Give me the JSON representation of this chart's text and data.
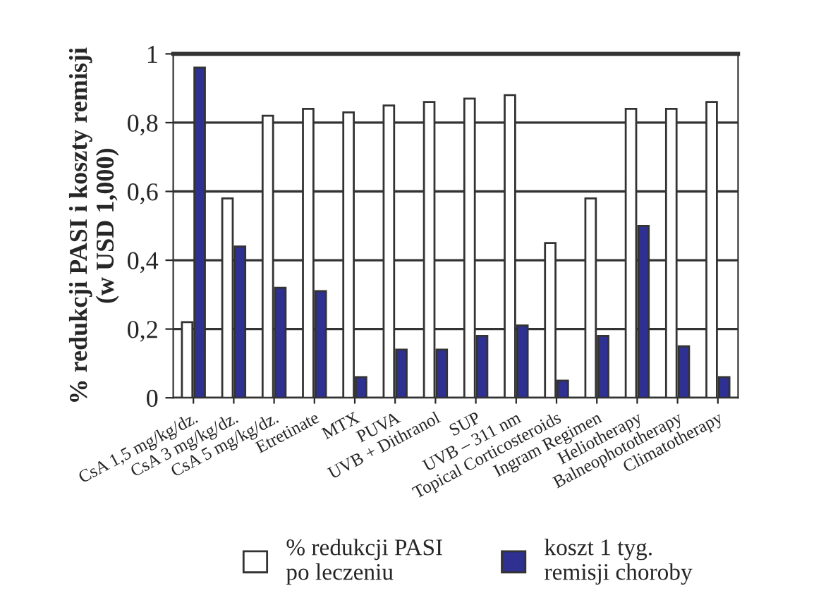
{
  "chart_data": {
    "type": "bar",
    "ylabel": "% redukcji PASI i koszty remisji\n(w USD 1,000)",
    "categories": [
      "CsA 1,5 mg/kg/dz.",
      "CsA 3 mg/kg/dz.",
      "CsA 5 mg/kg/dz.",
      "Etretinate",
      "MTX",
      "PUVA",
      "UVB + Dithranol",
      "SUP",
      "UVB – 311 nm",
      "Topical Corticosteroids",
      "Ingram Regimen",
      "Heliotherapy",
      "Balneophototherapy",
      "Climatotherapy"
    ],
    "series": [
      {
        "name": "% redukcji PASI\npo leczeniu",
        "color": "#ffffff",
        "values": [
          0.22,
          0.58,
          0.82,
          0.84,
          0.83,
          0.85,
          0.86,
          0.87,
          0.88,
          0.45,
          0.58,
          0.84,
          0.84,
          0.86
        ]
      },
      {
        "name": "koszt 1 tyg.\nremisji choroby",
        "color": "#2e3192",
        "values": [
          0.96,
          0.44,
          0.32,
          0.31,
          0.06,
          0.14,
          0.14,
          0.18,
          0.21,
          0.05,
          0.18,
          0.5,
          0.15,
          0.06
        ]
      }
    ],
    "ylim": [
      0,
      1
    ],
    "yticks": [
      0,
      {
        "value": 0.2,
        "label": "0,2"
      },
      {
        "value": 0.4,
        "label": "0,4"
      },
      {
        "value": 0.6,
        "label": "0,6"
      },
      {
        "value": 0.8,
        "label": "0,8"
      },
      1
    ],
    "grid": "y",
    "legend": "bottom"
  }
}
